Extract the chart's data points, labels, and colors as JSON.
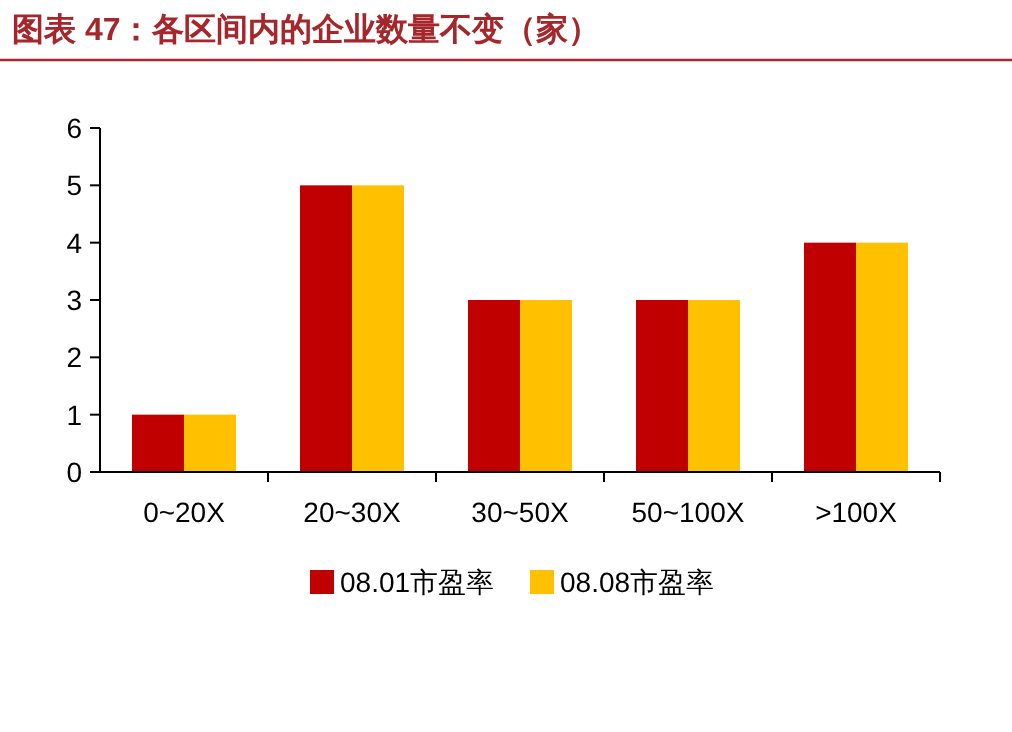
{
  "chart_data": {
    "type": "bar",
    "title": "图表 47：各区间内的企业数量不变（家）",
    "categories": [
      "0~20X",
      "20~30X",
      "30~50X",
      "50~100X",
      ">100X"
    ],
    "series": [
      {
        "name": "08.01市盈率",
        "color": "#c00000",
        "values": [
          1,
          5,
          3,
          3,
          4
        ]
      },
      {
        "name": "08.08市盈率",
        "color": "#ffc000",
        "values": [
          1,
          5,
          3,
          3,
          4
        ]
      }
    ],
    "ylim": [
      0,
      6
    ],
    "yticks": [
      0,
      1,
      2,
      3,
      4,
      5,
      6
    ],
    "legend": "bottom"
  }
}
